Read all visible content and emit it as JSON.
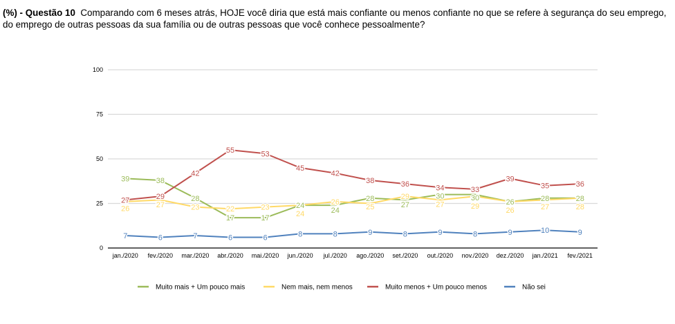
{
  "question": {
    "prefix": "(%) - Questão 10",
    "text": "Comparando com 6 meses atrás, HOJE você diria que está mais confiante ou menos confiante no que se refere à segurança do seu emprego, do emprego de outras pessoas da sua família ou de outras pessoas que você conhece pessoalmente?"
  },
  "chart_data": {
    "type": "line",
    "title": "",
    "xlabel": "",
    "ylabel": "",
    "ylim": [
      0,
      100
    ],
    "yticks": [
      "0",
      "25",
      "50",
      "75",
      "100"
    ],
    "grid": true,
    "legend_position": "bottom",
    "categories": [
      "jan./2020",
      "fev./2020",
      "mar./2020",
      "abr./2020",
      "mai./2020",
      "jun./2020",
      "jul./2020",
      "ago./2020",
      "set./2020",
      "out./2020",
      "nov./2020",
      "dez./2020",
      "jan./2021",
      "fev./2021"
    ],
    "series": [
      {
        "name": "Muito mais + Um pouco mais",
        "color": "#9bbb59",
        "values": [
          39,
          38,
          28,
          17,
          17,
          24,
          24,
          28,
          27,
          30,
          30,
          26,
          28,
          28
        ]
      },
      {
        "name": "Nem mais, nem menos",
        "color": "#ffd966",
        "values": [
          26,
          27,
          23,
          22,
          23,
          24,
          26,
          25,
          29,
          27,
          29,
          26,
          27,
          28
        ]
      },
      {
        "name": "Muito menos + Um pouco menos",
        "color": "#c0504d",
        "values": [
          27,
          29,
          42,
          55,
          53,
          45,
          42,
          38,
          36,
          34,
          33,
          39,
          35,
          36
        ]
      },
      {
        "name": "Não sei",
        "color": "#4f81bd",
        "values": [
          7,
          6,
          7,
          6,
          6,
          8,
          8,
          9,
          8,
          9,
          8,
          9,
          10,
          9
        ]
      }
    ]
  }
}
